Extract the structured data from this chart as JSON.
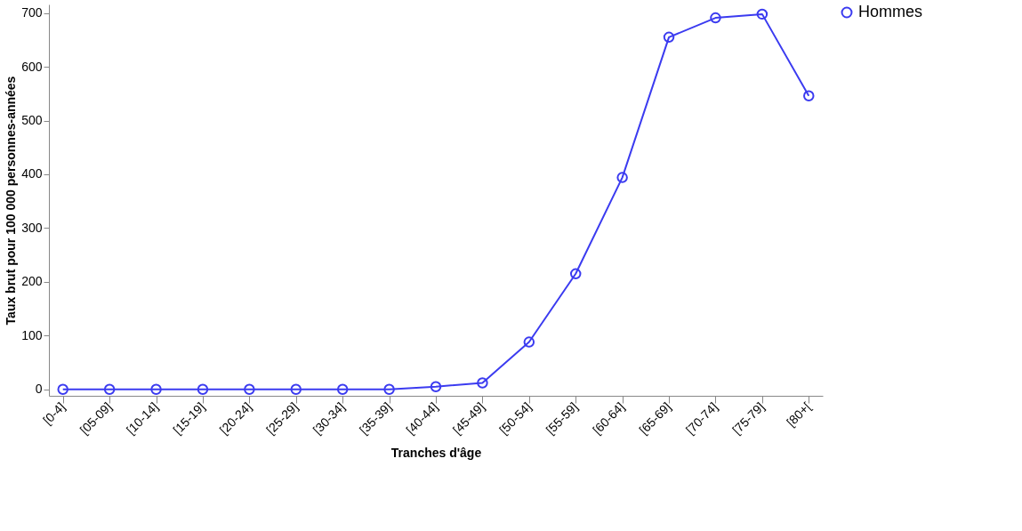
{
  "chart_data": {
    "type": "line",
    "xlabel": "Tranches d'âge",
    "ylabel": "Taux brut pour 100 000 personnes-années",
    "categories": [
      "[0-4]",
      "[05-09]",
      "[10-14]",
      "[15-19]",
      "[20-24]",
      "[25-29]",
      "[30-34]",
      "[35-39]",
      "[40-44]",
      "[45-49]",
      "[50-54]",
      "[55-59]",
      "[60-64]",
      "[65-69]",
      "[70-74]",
      "[75-79]",
      "[80+["
    ],
    "series": [
      {
        "name": "Hommes",
        "color": "#3b3bf0",
        "values": [
          0,
          0,
          0,
          0,
          0,
          0,
          0,
          0,
          5,
          12,
          88,
          215,
          394,
          655,
          691,
          698,
          546
        ]
      }
    ],
    "ylim": [
      -12,
      716
    ],
    "yticks": [
      0,
      100,
      200,
      300,
      400,
      500,
      600,
      700
    ],
    "grid": false,
    "legend": "right",
    "marker": "circle",
    "line_style": "solid"
  }
}
